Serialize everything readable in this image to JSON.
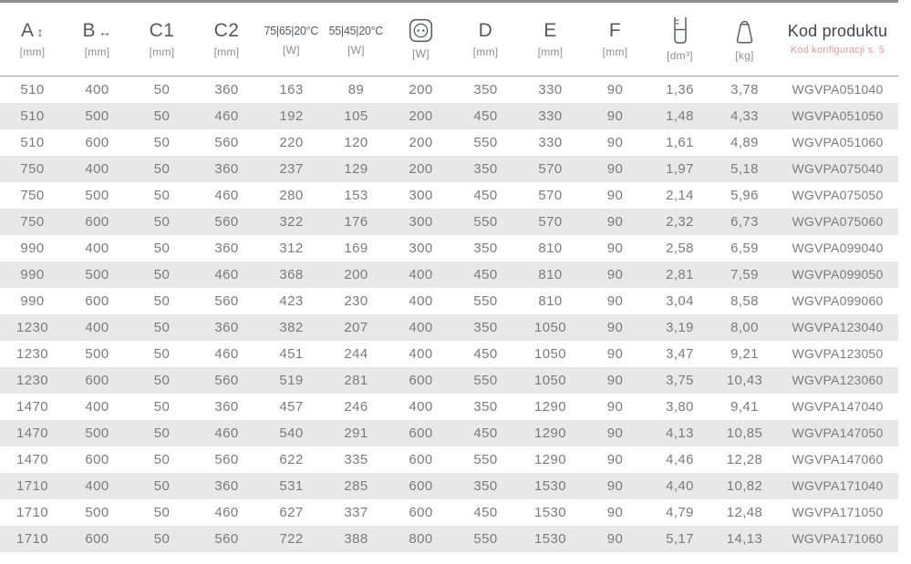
{
  "colors": {
    "top_border": "#8e8e8e",
    "header_rule": "#9b9b9b",
    "row_stripe": "#e8e8e8",
    "data_text": "#7b7b7b",
    "header_text": "#565a60",
    "unit_text": "#8d8d8d",
    "accent_pink": "#e89a9a"
  },
  "table": {
    "columns": [
      {
        "id": "a",
        "label": "A",
        "arrow": "↕",
        "arrow_icon": "vertical-double-arrow-icon",
        "unit": "[mm]"
      },
      {
        "id": "b",
        "label": "B",
        "arrow": "↔",
        "arrow_icon": "horizontal-double-arrow-icon",
        "unit": "[mm]"
      },
      {
        "id": "c1",
        "label": "C1",
        "unit": "[mm]"
      },
      {
        "id": "c2",
        "label": "C2",
        "unit": "[mm]"
      },
      {
        "id": "power-75-65-20",
        "label": "75|65|20°C",
        "unit": "[W]",
        "condensed": true
      },
      {
        "id": "power-55-45-20",
        "label": "55|45|20°C",
        "unit": "[W]",
        "condensed": true
      },
      {
        "id": "power-electric",
        "icon": "power-socket-icon",
        "unit": "[W]"
      },
      {
        "id": "d",
        "label": "D",
        "unit": "[mm]"
      },
      {
        "id": "e",
        "label": "E",
        "unit": "[mm]"
      },
      {
        "id": "f",
        "label": "F",
        "unit": "[mm]"
      },
      {
        "id": "volume",
        "icon": "water-capacity-icon",
        "unit": "[dm³]"
      },
      {
        "id": "weight",
        "icon": "weight-icon",
        "unit": "[kg]"
      },
      {
        "id": "code",
        "label": "Kod produktu",
        "sublabel": "Kod konfiguracji s. 5"
      }
    ],
    "rows": [
      [
        "510",
        "400",
        "50",
        "360",
        "163",
        "89",
        "200",
        "350",
        "330",
        "90",
        "1,36",
        "3,78",
        "WGVPA051040"
      ],
      [
        "510",
        "500",
        "50",
        "460",
        "192",
        "105",
        "200",
        "450",
        "330",
        "90",
        "1,48",
        "4,33",
        "WGVPA051050"
      ],
      [
        "510",
        "600",
        "50",
        "560",
        "220",
        "120",
        "200",
        "550",
        "330",
        "90",
        "1,61",
        "4,89",
        "WGVPA051060"
      ],
      [
        "750",
        "400",
        "50",
        "360",
        "237",
        "129",
        "200",
        "350",
        "570",
        "90",
        "1,97",
        "5,18",
        "WGVPA075040"
      ],
      [
        "750",
        "500",
        "50",
        "460",
        "280",
        "153",
        "300",
        "450",
        "570",
        "90",
        "2,14",
        "5,96",
        "WGVPA075050"
      ],
      [
        "750",
        "600",
        "50",
        "560",
        "322",
        "176",
        "300",
        "550",
        "570",
        "90",
        "2,32",
        "6,73",
        "WGVPA075060"
      ],
      [
        "990",
        "400",
        "50",
        "360",
        "312",
        "169",
        "300",
        "350",
        "810",
        "90",
        "2,58",
        "6,59",
        "WGVPA099040"
      ],
      [
        "990",
        "500",
        "50",
        "460",
        "368",
        "200",
        "400",
        "450",
        "810",
        "90",
        "2,81",
        "7,59",
        "WGVPA099050"
      ],
      [
        "990",
        "600",
        "50",
        "560",
        "423",
        "230",
        "400",
        "550",
        "810",
        "90",
        "3,04",
        "8,58",
        "WGVPA099060"
      ],
      [
        "1230",
        "400",
        "50",
        "360",
        "382",
        "207",
        "400",
        "350",
        "1050",
        "90",
        "3,19",
        "8,00",
        "WGVPA123040"
      ],
      [
        "1230",
        "500",
        "50",
        "460",
        "451",
        "244",
        "400",
        "450",
        "1050",
        "90",
        "3,47",
        "9,21",
        "WGVPA123050"
      ],
      [
        "1230",
        "600",
        "50",
        "560",
        "519",
        "281",
        "600",
        "550",
        "1050",
        "90",
        "3,75",
        "10,43",
        "WGVPA123060"
      ],
      [
        "1470",
        "400",
        "50",
        "360",
        "457",
        "246",
        "400",
        "350",
        "1290",
        "90",
        "3,80",
        "9,41",
        "WGVPA147040"
      ],
      [
        "1470",
        "500",
        "50",
        "460",
        "540",
        "291",
        "600",
        "450",
        "1290",
        "90",
        "4,13",
        "10,85",
        "WGVPA147050"
      ],
      [
        "1470",
        "600",
        "50",
        "560",
        "622",
        "335",
        "600",
        "550",
        "1290",
        "90",
        "4,46",
        "12,28",
        "WGVPA147060"
      ],
      [
        "1710",
        "400",
        "50",
        "360",
        "531",
        "285",
        "600",
        "350",
        "1530",
        "90",
        "4,40",
        "10,82",
        "WGVPA171040"
      ],
      [
        "1710",
        "500",
        "50",
        "460",
        "627",
        "337",
        "600",
        "450",
        "1530",
        "90",
        "4,79",
        "12,48",
        "WGVPA171050"
      ],
      [
        "1710",
        "600",
        "50",
        "560",
        "722",
        "388",
        "800",
        "550",
        "1530",
        "90",
        "5,17",
        "14,13",
        "WGVPA171060"
      ]
    ]
  }
}
